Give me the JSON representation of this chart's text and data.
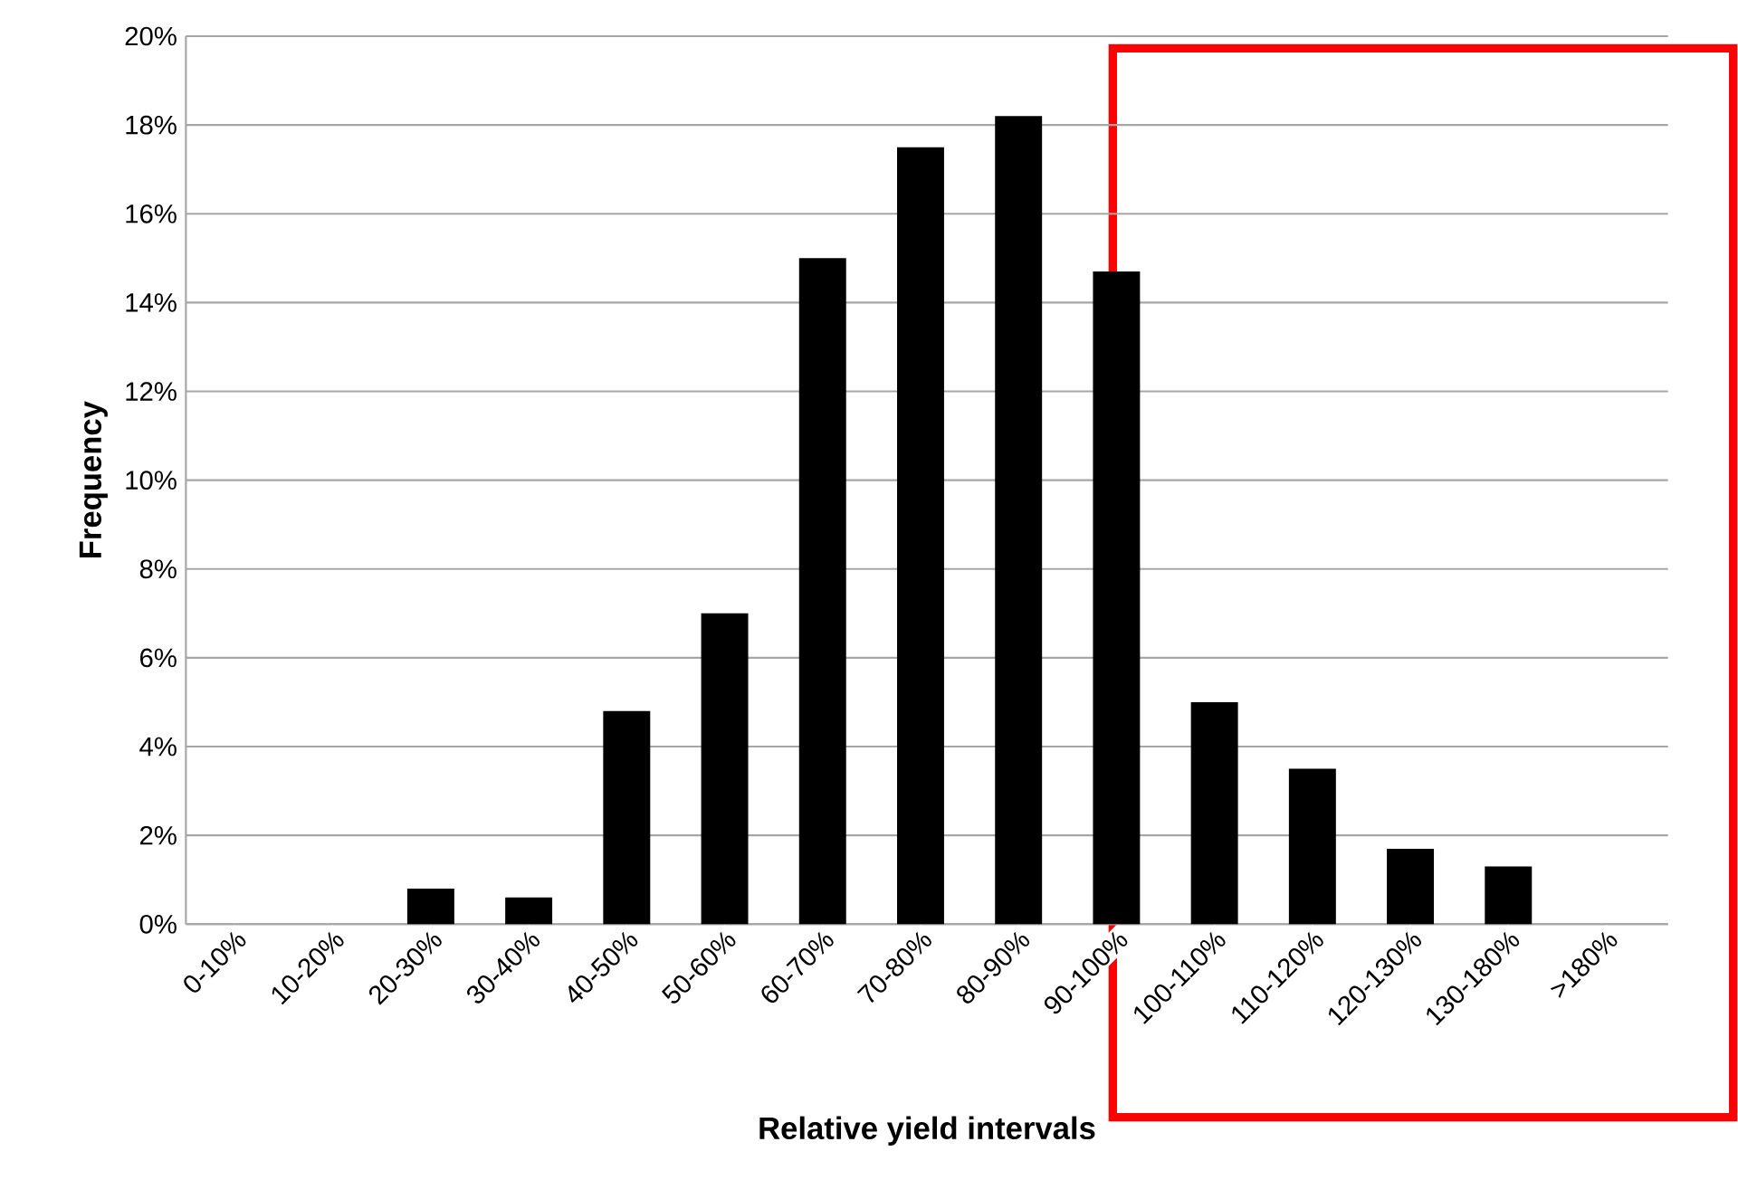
{
  "chart_data": {
    "type": "bar",
    "xlabel": "Relative yield intervals",
    "ylabel": "Frequency",
    "categories": [
      "0-10%",
      "10-20%",
      "20-30%",
      "30-40%",
      "40-50%",
      "50-60%",
      "60-70%",
      "70-80%",
      "80-90%",
      "90-100%",
      "100-110%",
      "110-120%",
      "120-130%",
      "130-180%",
      ">180%"
    ],
    "values": [
      0,
      0,
      0.8,
      0.6,
      4.8,
      7.0,
      15.0,
      17.5,
      18.2,
      14.7,
      5.0,
      3.5,
      1.7,
      1.3,
      0
    ],
    "color": "#000000",
    "ylim": [
      0,
      20
    ],
    "yticks": [
      {
        "value": 0,
        "label": "0%"
      },
      {
        "value": 2,
        "label": "2%"
      },
      {
        "value": 4,
        "label": "4%"
      },
      {
        "value": 6,
        "label": "6%"
      },
      {
        "value": 8,
        "label": "8%"
      },
      {
        "value": 10,
        "label": "10%"
      },
      {
        "value": 12,
        "label": "12%"
      },
      {
        "value": 14,
        "label": "14%"
      },
      {
        "value": 16,
        "label": "16%"
      },
      {
        "value": 18,
        "label": "18%"
      },
      {
        "value": 20,
        "label": "20%"
      }
    ],
    "grid": "y"
  }
}
